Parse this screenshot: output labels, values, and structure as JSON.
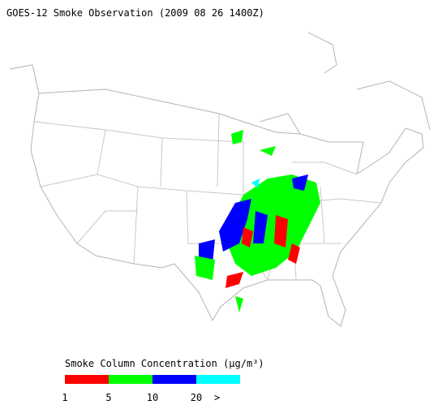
{
  "title": "GOES-12 Smoke Observation (2009 08 26  1400Z)",
  "legend": {
    "title": "Smoke Column Concentration (μg/m³)",
    "colors": [
      "#ff0000",
      "#00ff00",
      "#0000ff",
      "#00ffff"
    ],
    "labels": [
      "1",
      "5",
      "10",
      "20",
      ">"
    ]
  }
}
